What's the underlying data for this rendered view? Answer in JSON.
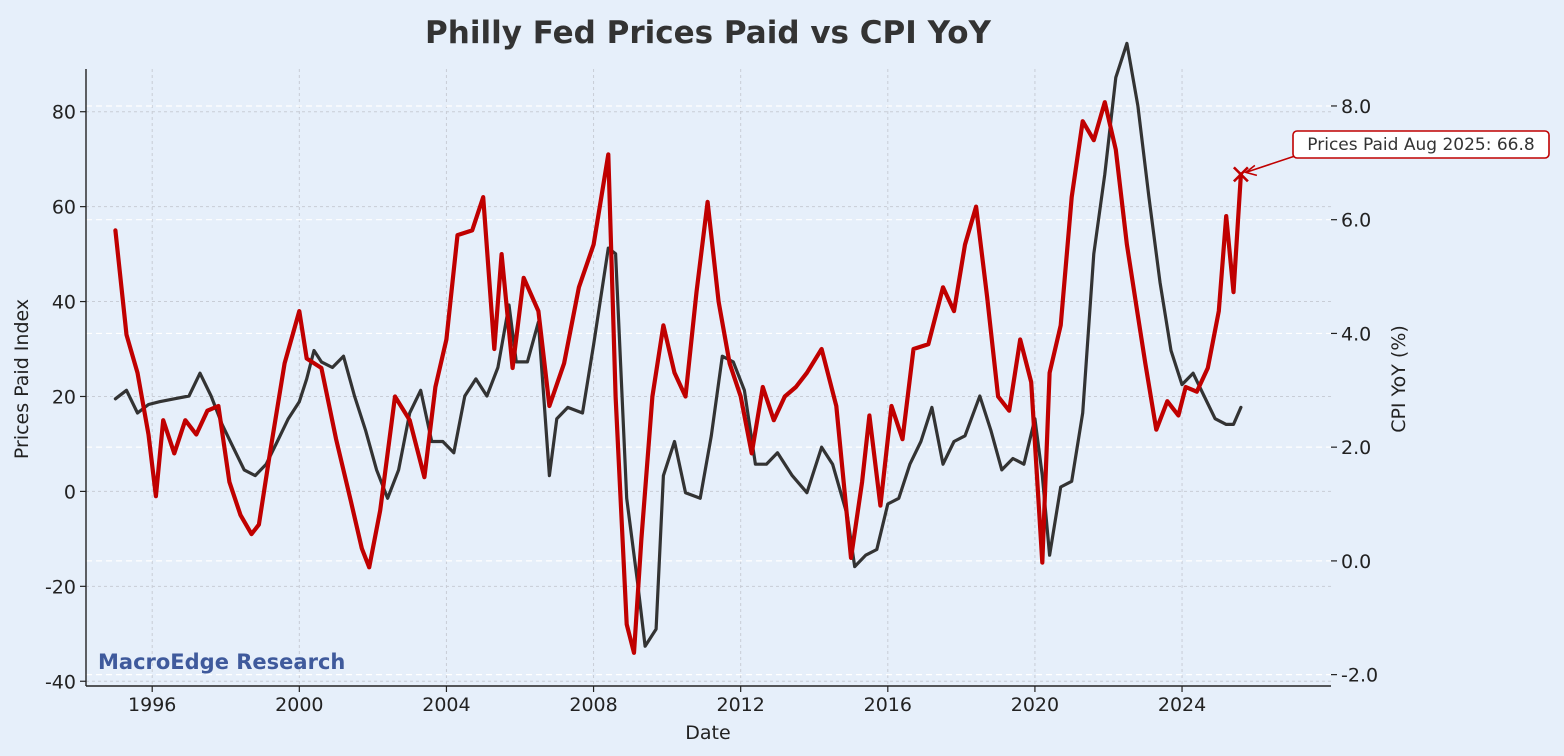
{
  "chart_data": {
    "type": "line",
    "title": "Philly Fed Prices Paid vs CPI YoY",
    "xlabel": "Date",
    "ylabel": "Prices Paid Index",
    "y2label": "CPI YoY (%)",
    "xlim": [
      1994.2,
      2028.05
    ],
    "ylim": [
      -41,
      89
    ],
    "y2lim": [
      -2.2,
      8.65
    ],
    "x_ticks": [
      1996,
      2000,
      2004,
      2008,
      2012,
      2016,
      2020,
      2024
    ],
    "y_ticks": [
      -40,
      -20,
      0,
      20,
      40,
      60,
      80
    ],
    "y2_ticks": [
      -2.0,
      0.0,
      2.0,
      4.0,
      6.0,
      8.0
    ],
    "y_tick_labels": [
      "-40",
      "-20",
      "0",
      "20",
      "40",
      "60",
      "80"
    ],
    "y2_tick_labels": [
      "-2.0",
      "0.0",
      "2.0",
      "4.0",
      "6.0",
      "8.0"
    ],
    "x_tick_labels": [
      "1996",
      "2000",
      "2004",
      "2008",
      "2012",
      "2016",
      "2020",
      "2024"
    ],
    "grid": true,
    "series": [
      {
        "name": "Prices Paid Index",
        "axis": "left",
        "color": "#c00000",
        "x": [
          1995.0,
          1995.3,
          1995.6,
          1995.9,
          1996.1,
          1996.3,
          1996.6,
          1996.9,
          1997.2,
          1997.5,
          1997.8,
          1998.1,
          1998.4,
          1998.7,
          1998.9,
          1999.2,
          1999.6,
          2000.0,
          2000.2,
          2000.6,
          2001.0,
          2001.4,
          2001.7,
          2001.9,
          2002.2,
          2002.6,
          2003.0,
          2003.4,
          2003.7,
          2004.0,
          2004.3,
          2004.7,
          2005.0,
          2005.3,
          2005.5,
          2005.8,
          2006.1,
          2006.5,
          2006.8,
          2007.2,
          2007.6,
          2008.0,
          2008.4,
          2008.6,
          2008.9,
          2009.1,
          2009.3,
          2009.6,
          2009.9,
          2010.2,
          2010.5,
          2010.8,
          2011.1,
          2011.4,
          2011.7,
          2012.0,
          2012.3,
          2012.6,
          2012.9,
          2013.2,
          2013.5,
          2013.8,
          2014.2,
          2014.6,
          2015.0,
          2015.3,
          2015.5,
          2015.8,
          2016.1,
          2016.4,
          2016.7,
          2017.1,
          2017.5,
          2017.8,
          2018.1,
          2018.4,
          2018.7,
          2019.0,
          2019.3,
          2019.6,
          2019.9,
          2020.2,
          2020.4,
          2020.7,
          2021.0,
          2021.3,
          2021.6,
          2021.9,
          2022.2,
          2022.5,
          2022.8,
          2023.0,
          2023.3,
          2023.6,
          2023.9,
          2024.1,
          2024.4,
          2024.7,
          2025.0,
          2025.2,
          2025.4,
          2025.6
        ],
        "values": [
          55,
          33,
          25,
          12,
          -1,
          15,
          8,
          15,
          12,
          17,
          18,
          2,
          -5,
          -9,
          -7,
          8,
          27,
          38,
          28,
          26,
          11,
          -2,
          -12,
          -16,
          -4,
          20,
          15,
          3,
          22,
          32,
          54,
          55,
          62,
          30,
          50,
          26,
          45,
          38,
          18,
          27,
          43,
          52,
          71,
          20,
          -28,
          -34,
          -10,
          20,
          35,
          25,
          20,
          42,
          61,
          40,
          27,
          20,
          8,
          22,
          15,
          20,
          22,
          25,
          30,
          18,
          -14,
          2,
          16,
          -3,
          18,
          11,
          30,
          31,
          43,
          38,
          52,
          60,
          41,
          20,
          17,
          32,
          23,
          -15,
          25,
          35,
          62,
          78,
          74,
          82,
          72,
          52,
          37,
          27,
          13,
          19,
          16,
          22,
          21,
          26,
          38,
          58,
          42,
          66.8
        ]
      },
      {
        "name": "CPI YoY (%)",
        "axis": "right",
        "color": "#333333",
        "x": [
          1995.0,
          1995.3,
          1995.6,
          1995.9,
          1996.2,
          1996.6,
          1997.0,
          1997.3,
          1997.6,
          1997.9,
          1998.2,
          1998.5,
          1998.8,
          1999.1,
          1999.4,
          1999.7,
          2000.0,
          2000.2,
          2000.4,
          2000.6,
          2000.9,
          2001.2,
          2001.5,
          2001.8,
          2002.1,
          2002.4,
          2002.7,
          2003.0,
          2003.3,
          2003.6,
          2003.9,
          2004.2,
          2004.5,
          2004.8,
          2005.1,
          2005.4,
          2005.7,
          2005.9,
          2006.2,
          2006.5,
          2006.8,
          2007.0,
          2007.3,
          2007.7,
          2008.0,
          2008.4,
          2008.6,
          2008.9,
          2009.2,
          2009.4,
          2009.7,
          2009.9,
          2010.2,
          2010.5,
          2010.9,
          2011.2,
          2011.5,
          2011.8,
          2012.1,
          2012.4,
          2012.7,
          2013.0,
          2013.4,
          2013.8,
          2014.2,
          2014.5,
          2014.9,
          2015.1,
          2015.4,
          2015.7,
          2016.0,
          2016.3,
          2016.6,
          2016.9,
          2017.2,
          2017.5,
          2017.8,
          2018.1,
          2018.5,
          2018.8,
          2019.1,
          2019.4,
          2019.7,
          2020.0,
          2020.2,
          2020.4,
          2020.7,
          2021.0,
          2021.3,
          2021.6,
          2021.9,
          2022.2,
          2022.5,
          2022.8,
          2023.1,
          2023.4,
          2023.7,
          2024.0,
          2024.3,
          2024.6,
          2024.9,
          2025.2,
          2025.4,
          2025.6
        ],
        "values": [
          2.85,
          3.0,
          2.6,
          2.75,
          2.8,
          2.85,
          2.9,
          3.3,
          2.9,
          2.4,
          2.0,
          1.6,
          1.5,
          1.7,
          2.1,
          2.5,
          2.8,
          3.2,
          3.7,
          3.5,
          3.4,
          3.6,
          2.9,
          2.3,
          1.6,
          1.1,
          1.6,
          2.6,
          3.0,
          2.1,
          2.1,
          1.9,
          2.9,
          3.2,
          2.9,
          3.4,
          4.5,
          3.5,
          3.5,
          4.2,
          1.5,
          2.5,
          2.7,
          2.6,
          3.8,
          5.5,
          5.4,
          1.1,
          -0.4,
          -1.5,
          -1.2,
          1.5,
          2.1,
          1.2,
          1.1,
          2.2,
          3.6,
          3.5,
          3.0,
          1.7,
          1.7,
          1.9,
          1.5,
          1.2,
          2.0,
          1.7,
          0.8,
          -0.1,
          0.1,
          0.2,
          1.0,
          1.1,
          1.7,
          2.1,
          2.7,
          1.7,
          2.1,
          2.2,
          2.9,
          2.3,
          1.6,
          1.8,
          1.7,
          2.5,
          1.5,
          0.1,
          1.3,
          1.4,
          2.6,
          5.4,
          6.8,
          8.5,
          9.1,
          8.0,
          6.4,
          4.9,
          3.7,
          3.1,
          3.3,
          2.9,
          2.5,
          2.4,
          2.4,
          2.7
        ]
      }
    ],
    "annotation": {
      "text": "Prices Paid Aug 2025: 66.8",
      "x": 2025.6,
      "y": 66.8,
      "marker": "x"
    },
    "watermark": "MacroEdge Research"
  }
}
